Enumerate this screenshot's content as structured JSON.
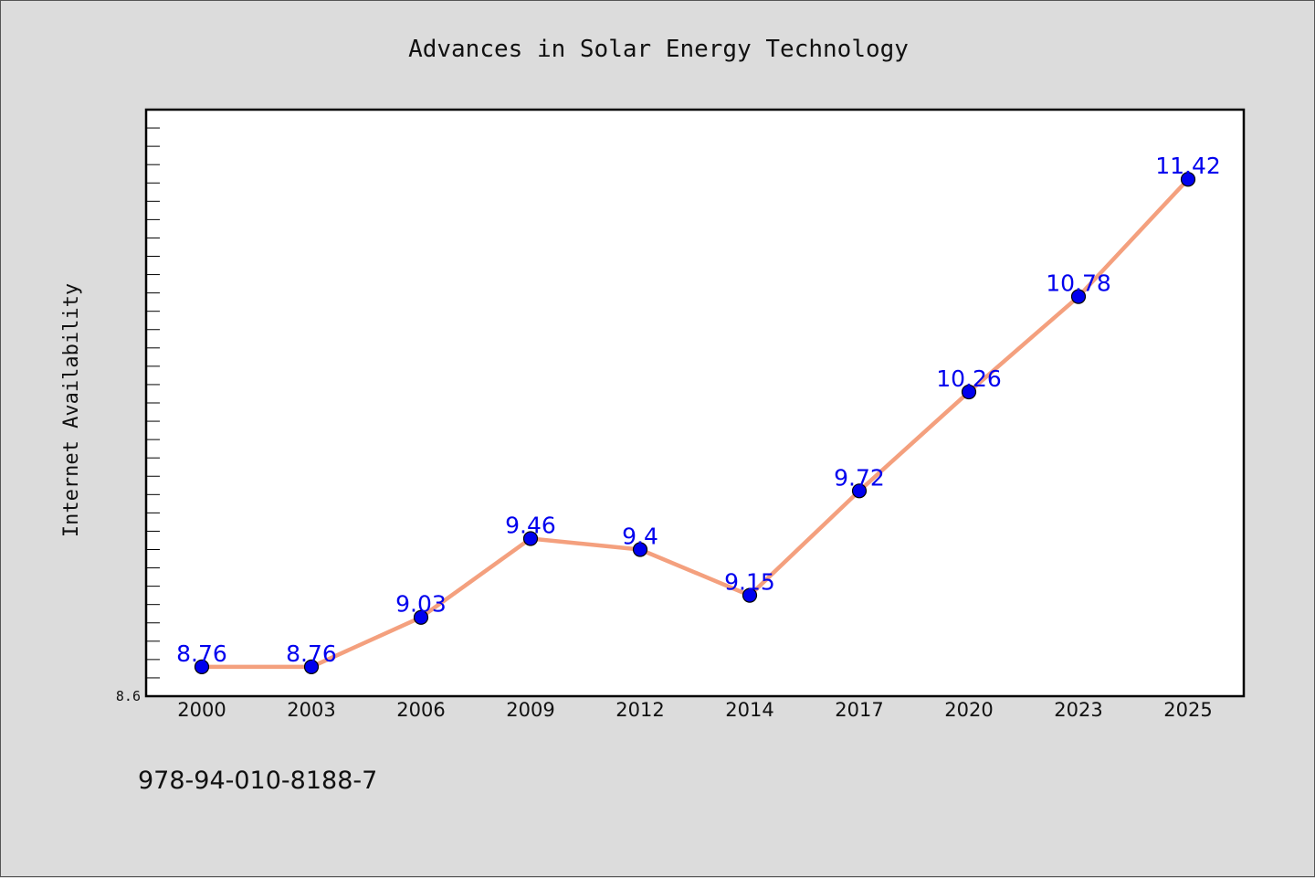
{
  "chart_data": {
    "type": "line",
    "title": "Advances in Solar Energy Technology",
    "xlabel": "",
    "ylabel": "Internet Availability",
    "categories": [
      "2000",
      "2003",
      "2006",
      "2009",
      "2012",
      "2014",
      "2017",
      "2020",
      "2023",
      "2025"
    ],
    "series": [
      {
        "values": [
          8.76,
          8.76,
          9.03,
          9.46,
          9.4,
          9.15,
          9.72,
          10.26,
          10.78,
          11.42
        ],
        "labels": [
          "8.76",
          "8.76",
          "9.03",
          "9.46",
          "9.4",
          "9.15",
          "9.72",
          "10.26",
          "10.78",
          "11.42"
        ],
        "line_color": "#f4a07e",
        "marker_color": "#0000ee"
      }
    ],
    "ylim": [
      8.6,
      11.8
    ],
    "y_tick_labels": [
      "8.6"
    ],
    "grid": false,
    "legend": "none"
  },
  "footnote": "978-94-010-8188-7",
  "colors": {
    "background": "#dcdcdc",
    "plot_background": "#ffffff",
    "line": "#f4a07e",
    "marker": "#0000ee",
    "data_label": "#0000ee"
  }
}
